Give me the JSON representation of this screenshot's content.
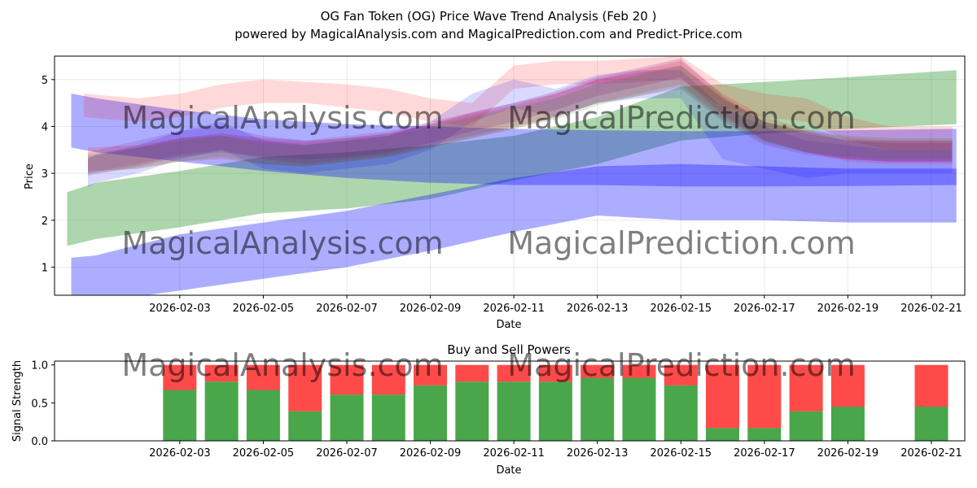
{
  "title": {
    "line1": "OG Fan Token (OG) Price Wave Trend Analysis (Feb 20 )",
    "line2": "powered by MagicalAnalysis.com and MagicalPrediction.com and Predict-Price.com"
  },
  "watermarks": [
    "MagicalAnalysis.com",
    "MagicalPrediction.com"
  ],
  "colors": {
    "blue": "#0000ff",
    "green": "#008000",
    "red": "#ff0000",
    "purple": "#800080",
    "buy": "#4aa64a",
    "sell": "#ff4a4a"
  },
  "chart_data": [
    {
      "type": "area",
      "name": "price-wave-trend",
      "xlabel": "Date",
      "ylabel": "Price",
      "xlim": [
        -1.0,
        20.8
      ],
      "ylim": [
        0.4,
        5.5
      ],
      "grid": true,
      "yticks": [
        1,
        2,
        3,
        4,
        5
      ],
      "xtick_labels": [
        {
          "day": 2,
          "label": "2026-02-03"
        },
        {
          "day": 4,
          "label": "2026-02-05"
        },
        {
          "day": 6,
          "label": "2026-02-07"
        },
        {
          "day": 8,
          "label": "2026-02-09"
        },
        {
          "day": 10,
          "label": "2026-02-11"
        },
        {
          "day": 12,
          "label": "2026-02-13"
        },
        {
          "day": 14,
          "label": "2026-02-15"
        },
        {
          "day": 16,
          "label": "2026-02-17"
        },
        {
          "day": 18,
          "label": "2026-02-19"
        },
        {
          "day": 20,
          "label": "2026-02-21"
        }
      ],
      "bands": [
        {
          "color": "green",
          "opacity": 0.32,
          "x": [
            -0.7,
            0,
            2,
            4,
            6,
            8,
            10,
            12,
            14,
            16,
            18,
            20.6
          ],
          "upper": [
            2.6,
            2.8,
            3.05,
            3.35,
            3.45,
            3.6,
            3.8,
            4.2,
            4.85,
            4.95,
            5.05,
            5.2
          ],
          "lower": [
            1.45,
            1.6,
            1.85,
            2.15,
            2.25,
            2.45,
            2.85,
            3.2,
            3.7,
            3.85,
            3.95,
            4.05
          ]
        },
        {
          "color": "blue",
          "opacity": 0.32,
          "x": [
            -0.6,
            0,
            2,
            4,
            6,
            8,
            10,
            12,
            14,
            16,
            18,
            20.6
          ],
          "upper": [
            1.2,
            1.25,
            1.7,
            1.95,
            2.2,
            2.55,
            2.9,
            3.15,
            3.2,
            3.15,
            3.1,
            3.1
          ],
          "lower": [
            0.2,
            0.25,
            0.5,
            0.75,
            1.0,
            1.35,
            1.75,
            2.1,
            2.0,
            2.0,
            1.95,
            1.95
          ]
        },
        {
          "color": "blue",
          "opacity": 0.32,
          "x": [
            -0.6,
            0,
            2,
            4,
            6,
            8,
            10,
            12,
            14,
            16,
            18,
            20.6
          ],
          "upper": [
            4.7,
            4.6,
            4.35,
            4.15,
            4.05,
            4.0,
            3.95,
            3.92,
            3.9,
            3.9,
            3.92,
            3.95
          ],
          "lower": [
            3.55,
            3.45,
            3.25,
            3.05,
            2.9,
            2.8,
            2.75,
            2.75,
            2.72,
            2.72,
            2.73,
            2.75
          ]
        },
        {
          "color": "red",
          "opacity": 0.15,
          "x": [
            -0.3,
            1,
            2,
            3,
            4,
            5,
            6,
            7,
            8,
            9,
            10,
            11,
            12,
            13,
            14,
            15,
            16,
            17,
            18,
            19,
            20.5
          ],
          "upper": [
            4.7,
            4.6,
            4.7,
            4.9,
            5.0,
            4.95,
            4.9,
            4.8,
            4.6,
            4.5,
            5.3,
            5.4,
            5.4,
            5.45,
            5.5,
            4.9,
            4.7,
            4.6,
            4.2,
            4.0,
            4.0
          ],
          "lower": [
            4.2,
            4.1,
            4.2,
            4.4,
            4.5,
            4.5,
            4.4,
            4.3,
            4.1,
            4.0,
            4.8,
            4.9,
            4.9,
            4.95,
            5.0,
            4.4,
            4.2,
            4.1,
            3.7,
            3.5,
            3.5
          ]
        },
        {
          "color": "blue",
          "opacity": 0.15,
          "x": [
            -0.2,
            0,
            1,
            2,
            3,
            4,
            5,
            6,
            7,
            8,
            9,
            10,
            11,
            12,
            13,
            14,
            15,
            16,
            17,
            18,
            19,
            20.5
          ],
          "upper": [
            3.3,
            3.4,
            3.6,
            3.9,
            4.1,
            3.7,
            3.6,
            3.7,
            3.8,
            4.1,
            4.7,
            5.0,
            4.8,
            5.1,
            5.2,
            5.2,
            4.4,
            4.0,
            3.7,
            3.6,
            3.5,
            3.5
          ],
          "lower": [
            2.7,
            2.8,
            3.0,
            3.3,
            3.5,
            3.1,
            3.0,
            3.1,
            3.2,
            3.5,
            4.1,
            4.4,
            4.2,
            4.5,
            4.6,
            4.6,
            3.3,
            3.1,
            2.9,
            3.0,
            3.0,
            3.0
          ]
        },
        {
          "color": "purple",
          "opacity": 0.15,
          "x": [
            -0.2,
            1,
            2,
            3,
            4,
            5,
            6,
            7,
            8,
            9,
            10,
            11,
            12,
            13,
            14,
            15,
            16,
            17,
            18,
            19,
            20.5
          ],
          "upper": [
            3.45,
            3.7,
            3.9,
            4.0,
            3.8,
            3.7,
            3.8,
            3.9,
            4.1,
            4.3,
            4.5,
            4.7,
            5.0,
            5.15,
            5.3,
            4.6,
            4.1,
            3.9,
            3.7,
            3.7,
            3.7
          ],
          "lower": [
            3.0,
            3.2,
            3.4,
            3.5,
            3.3,
            3.2,
            3.3,
            3.4,
            3.6,
            3.8,
            4.0,
            4.2,
            4.5,
            4.65,
            4.8,
            4.1,
            3.6,
            3.4,
            3.3,
            3.25,
            3.25
          ]
        },
        {
          "color": "red",
          "opacity": 0.15,
          "x": [
            -0.2,
            1,
            2,
            3,
            4,
            5,
            6,
            7,
            8,
            9,
            10,
            11,
            12,
            13,
            14,
            15,
            16,
            17,
            18,
            19,
            20.5
          ],
          "upper": [
            3.55,
            3.6,
            3.75,
            3.8,
            3.7,
            3.65,
            3.75,
            3.85,
            4.05,
            4.25,
            4.45,
            4.7,
            5.0,
            5.2,
            5.4,
            4.7,
            4.2,
            3.95,
            3.75,
            3.7,
            3.7
          ],
          "lower": [
            3.05,
            3.1,
            3.25,
            3.3,
            3.2,
            3.15,
            3.25,
            3.35,
            3.55,
            3.75,
            3.95,
            4.2,
            4.5,
            4.7,
            4.9,
            4.2,
            3.7,
            3.45,
            3.25,
            3.2,
            3.2
          ]
        },
        {
          "color": "purple",
          "opacity": 0.18,
          "x": [
            -0.2,
            1,
            2,
            3,
            4,
            5,
            6,
            7,
            8,
            9,
            10,
            11,
            12,
            13,
            14,
            15,
            16,
            17,
            18,
            19,
            20.5
          ],
          "upper": [
            3.35,
            3.55,
            3.75,
            3.85,
            3.75,
            3.7,
            3.75,
            3.85,
            4.05,
            4.3,
            4.5,
            4.75,
            5.05,
            5.25,
            5.45,
            4.65,
            4.1,
            3.85,
            3.7,
            3.65,
            3.65
          ],
          "lower": [
            2.95,
            3.15,
            3.35,
            3.45,
            3.35,
            3.3,
            3.35,
            3.45,
            3.65,
            3.9,
            4.1,
            4.35,
            4.65,
            4.85,
            5.05,
            4.25,
            3.7,
            3.45,
            3.3,
            3.25,
            3.25
          ]
        },
        {
          "color": "green",
          "opacity": 0.15,
          "x": [
            -0.2,
            1,
            2,
            3,
            4,
            5,
            6,
            7,
            8,
            9,
            10,
            11,
            12,
            13,
            14,
            15,
            16,
            17,
            18,
            19,
            20.5
          ],
          "upper": [
            3.4,
            3.55,
            3.7,
            3.8,
            3.65,
            3.6,
            3.7,
            3.8,
            4.0,
            4.2,
            4.4,
            4.6,
            4.9,
            5.1,
            5.3,
            4.6,
            4.1,
            3.9,
            3.8,
            3.75,
            3.75
          ],
          "lower": [
            3.0,
            3.1,
            3.25,
            3.35,
            3.2,
            3.15,
            3.25,
            3.35,
            3.55,
            3.75,
            3.95,
            4.15,
            4.45,
            4.65,
            4.85,
            4.15,
            3.65,
            3.45,
            3.35,
            3.3,
            3.3
          ]
        }
      ]
    },
    {
      "type": "bar",
      "name": "buy-sell-powers",
      "title": "Buy and Sell Powers",
      "xlabel": "Date",
      "ylabel": "Signal Strength",
      "xlim": [
        -1.0,
        20.8
      ],
      "ylim": [
        0,
        1.05
      ],
      "yticks": [
        0.0,
        0.5,
        1.0
      ],
      "ytick_labels": [
        "0.0",
        "0.5",
        "1.0"
      ],
      "xtick_labels": [
        {
          "day": 2,
          "label": "2026-02-03"
        },
        {
          "day": 4,
          "label": "2026-02-05"
        },
        {
          "day": 6,
          "label": "2026-02-07"
        },
        {
          "day": 8,
          "label": "2026-02-09"
        },
        {
          "day": 10,
          "label": "2026-02-11"
        },
        {
          "day": 12,
          "label": "2026-02-13"
        },
        {
          "day": 14,
          "label": "2026-02-15"
        },
        {
          "day": 16,
          "label": "2026-02-17"
        },
        {
          "day": 18,
          "label": "2026-02-19"
        },
        {
          "day": 20,
          "label": "2026-02-21"
        }
      ],
      "bar_width": 0.8,
      "days": [
        2,
        3,
        4,
        5,
        6,
        7,
        8,
        9,
        10,
        11,
        12,
        13,
        14,
        15,
        16,
        17,
        18,
        20
      ],
      "buy": [
        0.67,
        0.78,
        0.67,
        0.39,
        0.61,
        0.61,
        0.73,
        0.78,
        0.78,
        0.78,
        0.83,
        0.83,
        0.73,
        0.17,
        0.17,
        0.39,
        0.45,
        0.45
      ],
      "sell": [
        0.33,
        0.22,
        0.33,
        0.61,
        0.39,
        0.39,
        0.27,
        0.22,
        0.22,
        0.22,
        0.17,
        0.17,
        0.27,
        0.83,
        0.83,
        0.61,
        0.55,
        0.55
      ]
    }
  ]
}
